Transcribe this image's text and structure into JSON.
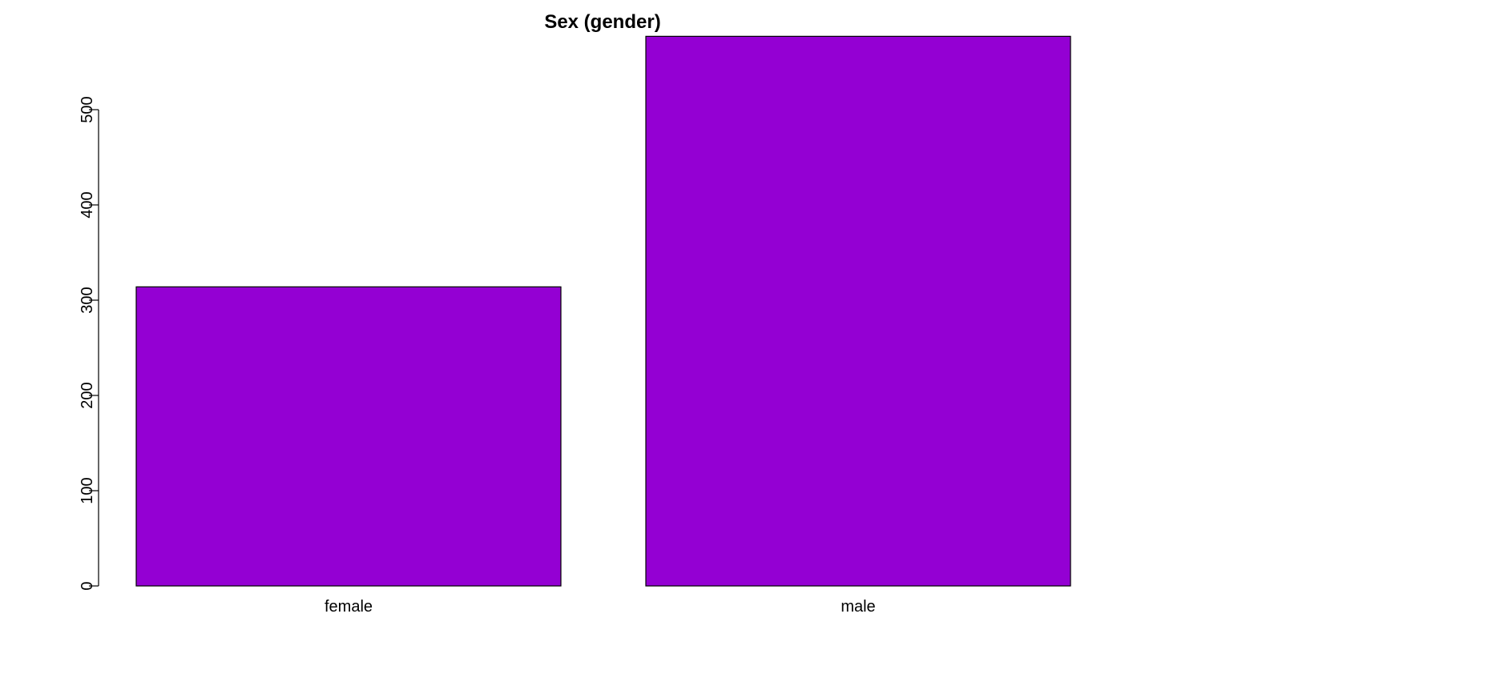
{
  "chart_data": {
    "type": "bar",
    "title": "Sex (gender)",
    "xlabel": "",
    "ylabel": "",
    "categories": [
      "female",
      "male"
    ],
    "values": [
      314,
      577
    ],
    "ylim": [
      0,
      577
    ],
    "yticks": [
      0,
      100,
      200,
      300,
      400,
      500
    ],
    "bar_color": "#9400d3",
    "bar_border_color": "#000000",
    "grid": false,
    "legend": "none"
  }
}
